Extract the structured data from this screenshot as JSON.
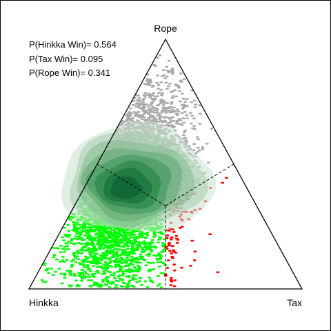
{
  "chart_data": {
    "type": "scatter",
    "kind": "ternary",
    "vertices": [
      {
        "name": "Hinkka",
        "position": "bottom-left"
      },
      {
        "name": "Tax",
        "position": "bottom-right"
      },
      {
        "name": "Rope",
        "position": "top"
      }
    ],
    "stats": [
      {
        "label": "P(Hinkka Win)= 0.564"
      },
      {
        "label": "P(Tax Win)= 0.095"
      },
      {
        "label": "P(Rope Win)= 0.341"
      }
    ],
    "regions": [
      {
        "winner": "Hinkka",
        "color": "#00ff00"
      },
      {
        "winner": "Tax",
        "color": "#ff0000"
      },
      {
        "winner": "Rope",
        "color": "#aaaaaa"
      }
    ],
    "density_mode": {
      "Hinkka": 0.45,
      "Tax": 0.15,
      "Rope": 0.4
    },
    "density_colors": [
      "#c8e0cd",
      "#a5ceae",
      "#82bb8f",
      "#5fa872",
      "#3d9457",
      "#1f7f40",
      "#0f6a36",
      "#06572b"
    ],
    "boundary_style": "dashed",
    "grid": false,
    "legend": "top-left"
  }
}
